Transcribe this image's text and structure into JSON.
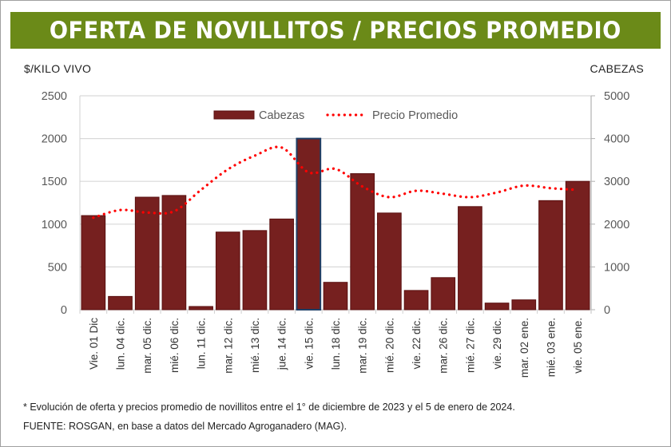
{
  "header": {
    "title": "OFERTA DE NOVILLITOS / PRECIOS PROMEDIO"
  },
  "colors": {
    "banner": "#6b8a18",
    "bar": "#76201f",
    "bar_edge": "#5a1010",
    "highlight_edge": "#1f3f66",
    "line": "#ff0000",
    "grid": "#d9d9d9",
    "tick_text": "#595959"
  },
  "chart_data": {
    "type": "bar",
    "title": "OFERTA DE NOVILLITOS / PRECIOS PROMEDIO",
    "ylabel_left": "$/KILO VIVO",
    "ylabel_right": "CABEZAS",
    "ylim_left": [
      0,
      2500
    ],
    "ylim_right": [
      0,
      5000
    ],
    "yticks_left": [
      "0",
      "500",
      "1000",
      "1500",
      "2000",
      "2500"
    ],
    "yticks_right": [
      "0",
      "1000",
      "2000",
      "3000",
      "4000",
      "5000"
    ],
    "grid": true,
    "legend_position": "top-center",
    "categories": [
      "Vie. 01 Dic",
      "lun. 04 dic.",
      "mar. 05 dic.",
      "mié. 06 dic.",
      "lun. 11 dic.",
      "mar. 12 dic.",
      "mié. 13 dic.",
      "jue. 14 dic.",
      "vie. 15 dic.",
      "lun. 18 dic.",
      "mar. 19 dic.",
      "mié. 20 dic.",
      "vie. 22 dic.",
      "mar. 26 dic.",
      "mié. 27 dic.",
      "vie. 29 dic.",
      "mar. 02 ene.",
      "mié. 03 ene.",
      "vie. 05 ene."
    ],
    "series": [
      {
        "name": "Cabezas",
        "type": "bar",
        "axis": "right",
        "values": [
          2200,
          310,
          2630,
          2670,
          75,
          1815,
          1850,
          2120,
          4000,
          640,
          3180,
          2260,
          450,
          750,
          2410,
          155,
          230,
          2550,
          3000
        ]
      },
      {
        "name": "Precio Promedio",
        "type": "line",
        "style": "dotted",
        "axis": "left",
        "values": [
          1075,
          1165,
          1135,
          1150,
          1400,
          1640,
          1800,
          1895,
          1605,
          1645,
          1440,
          1315,
          1390,
          1355,
          1315,
          1370,
          1450,
          1420,
          1400
        ]
      }
    ],
    "highlighted_category": "vie. 15 dic."
  },
  "footnotes": {
    "note": "* Evolución de oferta y precios promedio de novillitos entre el 1° de diciembre de 2023 y el 5 de enero de 2024.",
    "source": "FUENTE: ROSGAN, en base a datos del Mercado Agroganadero (MAG)."
  }
}
